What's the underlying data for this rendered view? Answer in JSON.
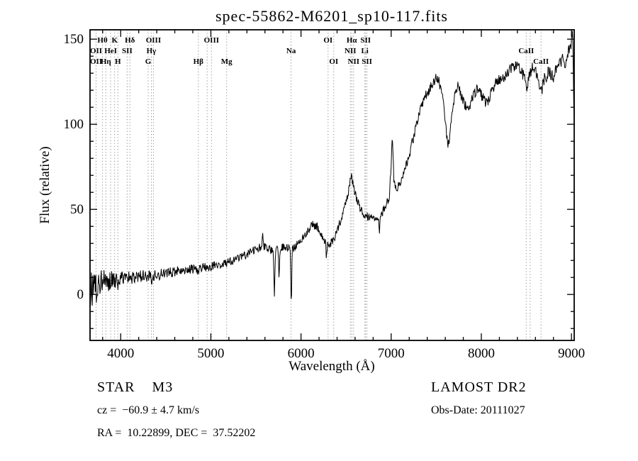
{
  "chart_data": {
    "type": "line",
    "title": "spec-55862-M6201_sp10-117.fits",
    "xlabel": "Wavelength (Å)",
    "ylabel": "Flux (relative)",
    "xlim": [
      3660,
      9030
    ],
    "ylim": [
      -27,
      155.5
    ],
    "x_ticks": [
      4000,
      5000,
      6000,
      7000,
      8000,
      9000
    ],
    "y_ticks": [
      0,
      50,
      100,
      150
    ],
    "x_minor_step": 200,
    "y_minor_step": 10,
    "grid": "off",
    "legend": "none",
    "line_color": "#000000",
    "marker_line_color": "#8a8a8a",
    "noise_seed": 20111027,
    "spectral_marker_wavelengths": [
      3727,
      3798,
      3835,
      3889,
      3933,
      3969,
      4072,
      4102,
      4305,
      4340,
      4363,
      4861,
      4959,
      5007,
      5175,
      5890,
      6300,
      6363,
      6548,
      6563,
      6583,
      6708,
      6716,
      6731,
      8498,
      8542,
      8662
    ],
    "line_labels": [
      {
        "row": 1,
        "wl": 3798,
        "text": "Hθ"
      },
      {
        "row": 1,
        "wl": 3933,
        "text": "K"
      },
      {
        "row": 1,
        "wl": 4102,
        "text": "Hδ"
      },
      {
        "row": 1,
        "wl": 4363,
        "text": "OIII"
      },
      {
        "row": 1,
        "wl": 5007,
        "text": "OIII"
      },
      {
        "row": 1,
        "wl": 6300,
        "text": "OI"
      },
      {
        "row": 1,
        "wl": 6563,
        "text": "Hα"
      },
      {
        "row": 1,
        "wl": 6716,
        "text": "SII"
      },
      {
        "row": 2,
        "wl": 3727,
        "text": "OII"
      },
      {
        "row": 2,
        "wl": 3889,
        "text": "HeI"
      },
      {
        "row": 2,
        "wl": 4072,
        "text": "SII"
      },
      {
        "row": 2,
        "wl": 4340,
        "text": "Hγ"
      },
      {
        "row": 2,
        "wl": 5890,
        "text": "Na"
      },
      {
        "row": 2,
        "wl": 6548,
        "text": "NII"
      },
      {
        "row": 2,
        "wl": 6708,
        "text": "Li"
      },
      {
        "row": 2,
        "wl": 8498,
        "text": "CaII"
      },
      {
        "row": 3,
        "wl": 3727,
        "text": "OII"
      },
      {
        "row": 3,
        "wl": 3835,
        "text": "Hη"
      },
      {
        "row": 3,
        "wl": 3969,
        "text": "H"
      },
      {
        "row": 3,
        "wl": 4305,
        "text": "G"
      },
      {
        "row": 3,
        "wl": 4861,
        "text": "Hβ"
      },
      {
        "row": 3,
        "wl": 5175,
        "text": "Mg"
      },
      {
        "row": 3,
        "wl": 6363,
        "text": "OI"
      },
      {
        "row": 3,
        "wl": 6583,
        "text": "NII"
      },
      {
        "row": 3,
        "wl": 6731,
        "text": "SII"
      },
      {
        "row": 3,
        "wl": 8662,
        "text": "CaII"
      }
    ],
    "envelope": [
      [
        3660,
        3
      ],
      [
        3680,
        5
      ],
      [
        3720,
        5
      ],
      [
        3760,
        6
      ],
      [
        3800,
        7
      ],
      [
        3860,
        8
      ],
      [
        3920,
        9
      ],
      [
        3980,
        9
      ],
      [
        4050,
        10
      ],
      [
        4150,
        10
      ],
      [
        4250,
        11
      ],
      [
        4350,
        11
      ],
      [
        4450,
        12
      ],
      [
        4550,
        13
      ],
      [
        4650,
        14
      ],
      [
        4750,
        15
      ],
      [
        4850,
        15
      ],
      [
        4950,
        16
      ],
      [
        5050,
        17
      ],
      [
        5150,
        18
      ],
      [
        5250,
        20
      ],
      [
        5350,
        22
      ],
      [
        5450,
        25
      ],
      [
        5530,
        27
      ],
      [
        5570,
        29
      ],
      [
        5620,
        27
      ],
      [
        5680,
        26
      ],
      [
        5740,
        27
      ],
      [
        5800,
        28
      ],
      [
        5860,
        27
      ],
      [
        5930,
        27
      ],
      [
        5980,
        31
      ],
      [
        6030,
        34
      ],
      [
        6080,
        38
      ],
      [
        6130,
        41
      ],
      [
        6180,
        40
      ],
      [
        6230,
        34
      ],
      [
        6280,
        30
      ],
      [
        6330,
        30
      ],
      [
        6380,
        34
      ],
      [
        6430,
        42
      ],
      [
        6480,
        50
      ],
      [
        6520,
        58
      ],
      [
        6555,
        70
      ],
      [
        6575,
        66
      ],
      [
        6610,
        57
      ],
      [
        6650,
        51
      ],
      [
        6700,
        47
      ],
      [
        6760,
        45
      ],
      [
        6820,
        44
      ],
      [
        6880,
        46
      ],
      [
        6940,
        52
      ],
      [
        6980,
        58
      ],
      [
        7000,
        78
      ],
      [
        7012,
        93
      ],
      [
        7030,
        68
      ],
      [
        7060,
        62
      ],
      [
        7100,
        66
      ],
      [
        7150,
        73
      ],
      [
        7200,
        82
      ],
      [
        7260,
        95
      ],
      [
        7320,
        108
      ],
      [
        7380,
        117
      ],
      [
        7440,
        122
      ],
      [
        7490,
        127
      ],
      [
        7530,
        125
      ],
      [
        7570,
        117
      ],
      [
        7605,
        98
      ],
      [
        7625,
        88
      ],
      [
        7650,
        93
      ],
      [
        7685,
        110
      ],
      [
        7710,
        120
      ],
      [
        7740,
        123
      ],
      [
        7780,
        116
      ],
      [
        7820,
        111
      ],
      [
        7860,
        109
      ],
      [
        7900,
        116
      ],
      [
        7950,
        121
      ],
      [
        8000,
        117
      ],
      [
        8060,
        112
      ],
      [
        8120,
        120
      ],
      [
        8180,
        126
      ],
      [
        8240,
        127
      ],
      [
        8300,
        131
      ],
      [
        8360,
        134
      ],
      [
        8420,
        133
      ],
      [
        8470,
        128
      ],
      [
        8505,
        122
      ],
      [
        8545,
        131
      ],
      [
        8580,
        135
      ],
      [
        8625,
        128
      ],
      [
        8662,
        118
      ],
      [
        8700,
        127
      ],
      [
        8750,
        131
      ],
      [
        8800,
        128
      ],
      [
        8850,
        134
      ],
      [
        8900,
        139
      ],
      [
        8940,
        135
      ],
      [
        8970,
        143
      ],
      [
        9000,
        149
      ],
      [
        9012,
        155
      ],
      [
        9030,
        95
      ]
    ],
    "noise": [
      [
        3660,
        15
      ],
      [
        3700,
        12
      ],
      [
        3760,
        9
      ],
      [
        3820,
        7
      ],
      [
        3900,
        5.5
      ],
      [
        4000,
        4.5
      ],
      [
        4200,
        3.5
      ],
      [
        4600,
        3
      ],
      [
        5000,
        2.5
      ],
      [
        5600,
        2.5
      ],
      [
        6200,
        2.5
      ],
      [
        6800,
        2.5
      ],
      [
        7200,
        3
      ],
      [
        7600,
        3
      ],
      [
        8000,
        3.2
      ],
      [
        8500,
        3.5
      ],
      [
        9030,
        4
      ]
    ],
    "features": [
      [
        5577,
        -8,
        4
      ],
      [
        5705,
        30,
        5
      ],
      [
        5757,
        19,
        4
      ],
      [
        5892,
        34,
        5
      ],
      [
        6283,
        8,
        5
      ],
      [
        6868,
        8,
        6
      ],
      [
        3934,
        3,
        5
      ],
      [
        3969,
        3,
        6
      ],
      [
        4102,
        3,
        6
      ],
      [
        4341,
        3,
        6
      ],
      [
        4861,
        3,
        6
      ]
    ]
  },
  "annotations": {
    "object_type": "STAR    M3",
    "survey": "LAMOST DR2",
    "cz": "cz =  −60.9 ± 4.7 km/s",
    "obs_date": "Obs-Date: 20111027",
    "radec": "RA =  10.22899, DEC =  37.52202"
  }
}
